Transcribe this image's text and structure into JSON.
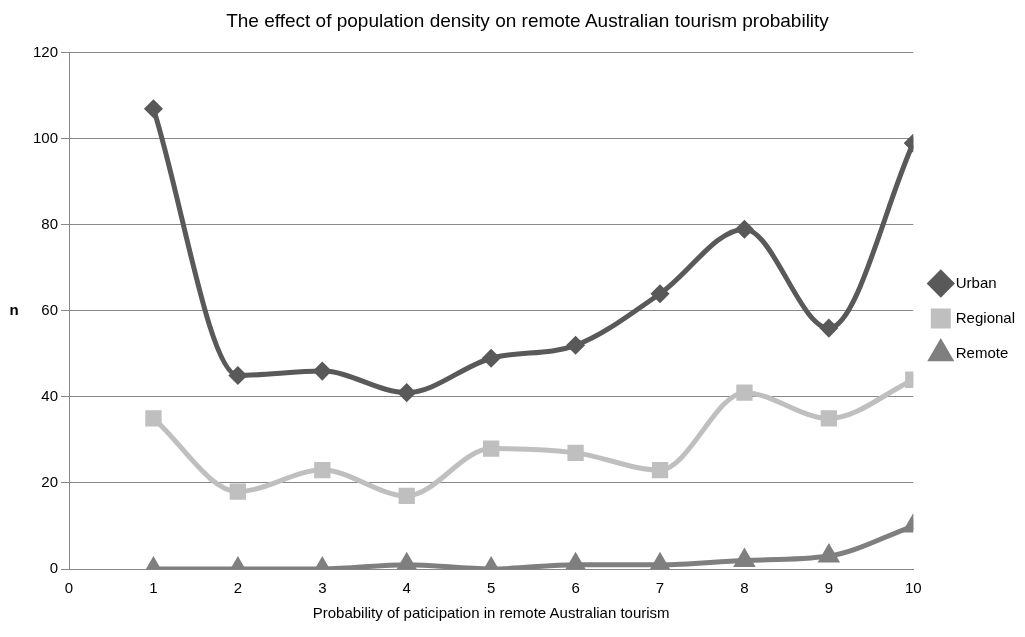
{
  "chart_data": {
    "type": "line",
    "title": "The effect of population density on remote Australian tourism probability",
    "xlabel": "Probability of paticipation in remote Australian tourism",
    "ylabel": "n",
    "x": [
      1,
      2,
      3,
      4,
      5,
      6,
      7,
      8,
      9,
      10
    ],
    "xlim": [
      0,
      10
    ],
    "xticks": [
      0,
      1,
      2,
      3,
      4,
      5,
      6,
      7,
      8,
      9,
      10
    ],
    "ylim": [
      0,
      120
    ],
    "yticks": [
      0,
      20,
      40,
      60,
      80,
      100,
      120
    ],
    "grid": "y",
    "legend": "right",
    "line_style": "solid",
    "series": [
      {
        "name": "Urban",
        "color": "#595959",
        "marker": "diamond",
        "values": [
          107,
          45,
          46,
          41,
          49,
          52,
          64,
          79,
          56,
          99
        ]
      },
      {
        "name": "Regional",
        "color": "#bfbfbf",
        "marker": "square",
        "values": [
          35,
          18,
          23,
          17,
          28,
          27,
          23,
          41,
          35,
          44
        ]
      },
      {
        "name": "Remote",
        "color": "#7f7f7f",
        "marker": "triangle",
        "values": [
          0,
          0,
          0,
          1,
          0,
          1,
          1,
          2,
          3,
          10
        ]
      }
    ]
  }
}
